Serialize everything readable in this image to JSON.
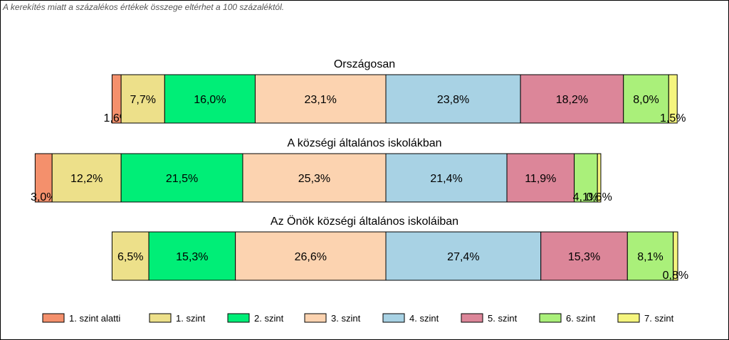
{
  "note": "A kerekítés miatt a  százalékos értékek összege eltérhet a 100 százaléktól.",
  "chart_data": {
    "type": "bar",
    "stacked": true,
    "orientation": "horizontal",
    "units": "%",
    "legend_position": "bottom",
    "legend": [
      "1. szint alatti",
      "1. szint",
      "2. szint",
      "3. szint",
      "4. szint",
      "5. szint",
      "6. szint",
      "7. szint"
    ],
    "colors": [
      "#f4906c",
      "#ede08a",
      "#00ee77",
      "#fcd3b0",
      "#a8d2e4",
      "#dc8699",
      "#aaf07a",
      "#f5f57e"
    ],
    "groups": [
      {
        "title": "Országosan",
        "values": [
          1.6,
          7.7,
          16.0,
          23.1,
          23.8,
          18.2,
          8.0,
          1.5
        ],
        "labels": [
          "1,6%",
          "7,7%",
          "16,0%",
          "23,1%",
          "23,8%",
          "18,2%",
          "8,0%",
          "1,5%"
        ]
      },
      {
        "title": "A községi általános iskolákban",
        "values": [
          3.0,
          12.2,
          21.5,
          25.3,
          21.4,
          11.9,
          4.1,
          0.6
        ],
        "labels": [
          "3,0%",
          "12,2%",
          "21,5%",
          "25,3%",
          "21,4%",
          "11,9%",
          "4,1%",
          "0,6%"
        ]
      },
      {
        "title": "Az Önök községi általános iskoláiban",
        "values": [
          0,
          6.5,
          15.3,
          26.6,
          27.4,
          15.3,
          8.1,
          0.8
        ],
        "labels": [
          "",
          "6,5%",
          "15,3%",
          "26,6%",
          "27,4%",
          "15,3%",
          "8,1%",
          "0,8%"
        ]
      }
    ]
  }
}
